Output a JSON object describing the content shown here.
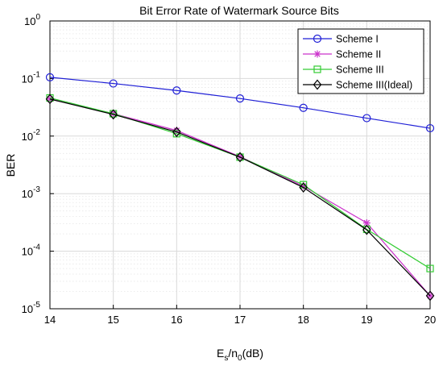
{
  "chart_data": {
    "type": "line",
    "title": "Bit Error Rate of Watermark Source Bits",
    "xlabel": {
      "base": "E",
      "sub1": "s",
      "mid": "/n",
      "sub2": "0",
      "tail": "(dB)"
    },
    "ylabel": "BER",
    "x": [
      14,
      15,
      16,
      17,
      18,
      19,
      20
    ],
    "xlim": [
      14,
      20
    ],
    "ylim": [
      1e-05,
      1
    ],
    "yscale": "log",
    "grid": true,
    "legend": "top-right",
    "xticks": [
      "14",
      "15",
      "16",
      "17",
      "18",
      "19",
      "20"
    ],
    "yticks": [
      {
        "value": 1,
        "base": "10",
        "exp": "0"
      },
      {
        "value": 0.1,
        "base": "10",
        "exp": "-1"
      },
      {
        "value": 0.01,
        "base": "10",
        "exp": "-2"
      },
      {
        "value": 0.001,
        "base": "10",
        "exp": "-3"
      },
      {
        "value": 0.0001,
        "base": "10",
        "exp": "-4"
      },
      {
        "value": 1e-05,
        "base": "10",
        "exp": "-5"
      }
    ],
    "series": [
      {
        "name": "Scheme I",
        "color": "#1f1fd6",
        "marker": "circle",
        "values": [
          0.105,
          0.082,
          0.062,
          0.045,
          0.031,
          0.0205,
          0.0137
        ]
      },
      {
        "name": "Scheme II",
        "color": "#cc33cc",
        "marker": "asterisk",
        "values": [
          0.044,
          0.0245,
          0.0125,
          0.0044,
          0.00135,
          0.00031,
          1.68e-05
        ]
      },
      {
        "name": "Scheme III",
        "color": "#33cc33",
        "marker": "square",
        "values": [
          0.046,
          0.0245,
          0.011,
          0.0043,
          0.00143,
          0.00024,
          5e-05
        ]
      },
      {
        "name": "Scheme III(Ideal)",
        "color": "#000000",
        "marker": "diamond",
        "values": [
          0.044,
          0.0238,
          0.0118,
          0.0043,
          0.00128,
          0.000235,
          1.68e-05
        ]
      }
    ]
  }
}
